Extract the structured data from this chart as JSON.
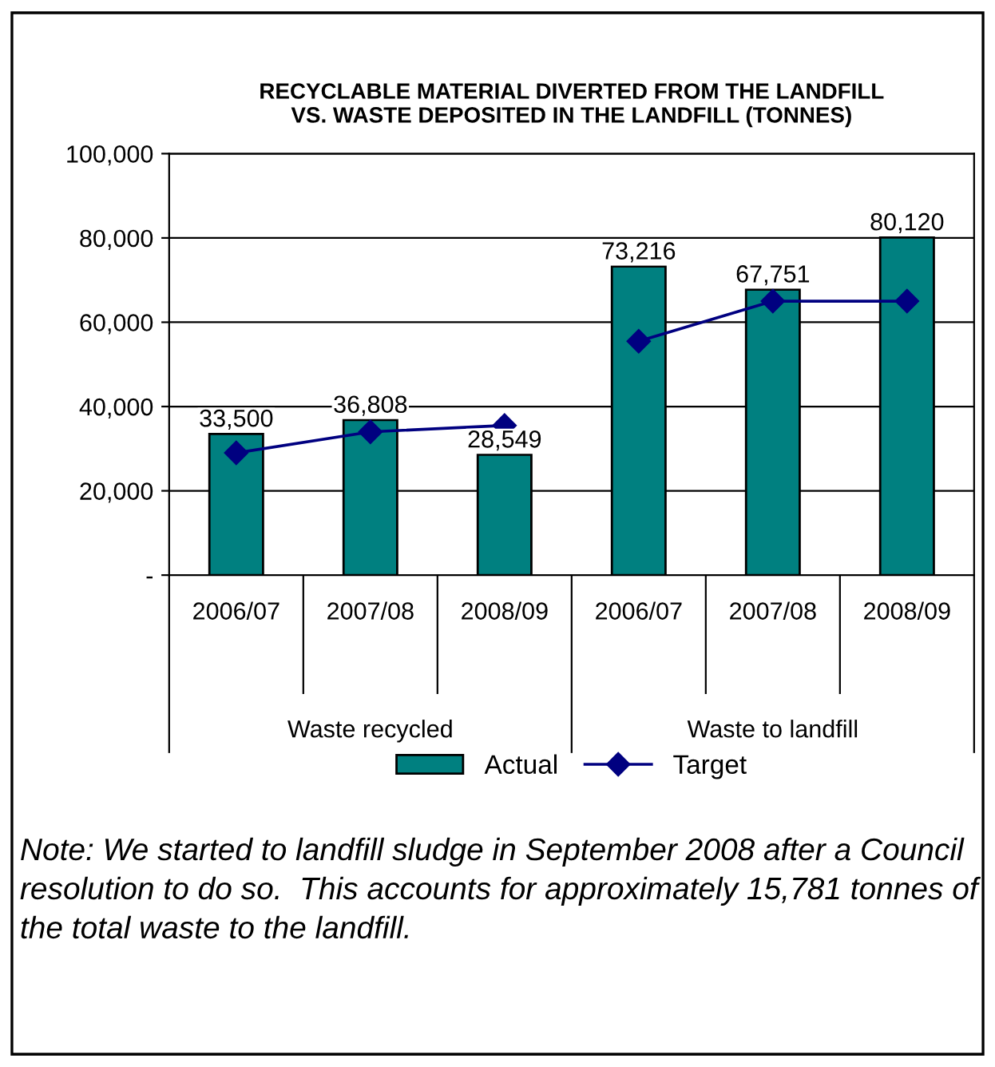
{
  "chart_data": {
    "type": "bar",
    "title": "RECYCLABLE MATERIAL DIVERTED FROM THE LANDFILL\nVS. WASTE DEPOSITED IN THE LANDFILL (TONNES)",
    "categories": [
      "2006/07",
      "2007/08",
      "2008/09",
      "2006/07",
      "2007/08",
      "2008/09"
    ],
    "series": [
      {
        "name": "Actual",
        "color": "#008080",
        "values": [
          33500,
          36808,
          28549,
          73216,
          67751,
          80120
        ],
        "value_labels": [
          "33,500",
          "36,808",
          "28,549",
          "73,216",
          "67,751",
          "80,120"
        ]
      },
      {
        "name": "Target",
        "type": "line",
        "color": "#000080",
        "marker": "diamond",
        "values": [
          29000,
          34000,
          35500,
          null,
          null,
          null
        ]
      },
      {
        "type": "line",
        "color": "#000080",
        "marker": "diamond",
        "values": [
          null,
          null,
          null,
          55500,
          65000,
          65000
        ]
      }
    ],
    "ylim": [
      0,
      100000
    ],
    "yticks": [
      {
        "value": 0,
        "label": "-"
      },
      {
        "value": 20000,
        "label": "20,000"
      },
      {
        "value": 40000,
        "label": "40,000"
      },
      {
        "value": 60000,
        "label": "60,000"
      },
      {
        "value": 80000,
        "label": "80,000"
      },
      {
        "value": 100000,
        "label": "100,000"
      }
    ],
    "grid": "y",
    "legend": "bottom",
    "annotations": [
      "Waste recycled",
      "Waste to landfill",
      "Note: We started to landfill sludge in September 2008 after a Council resolution to do so.  This accounts for approximately 15,781 tonnes of the total waste to the landfill."
    ]
  }
}
